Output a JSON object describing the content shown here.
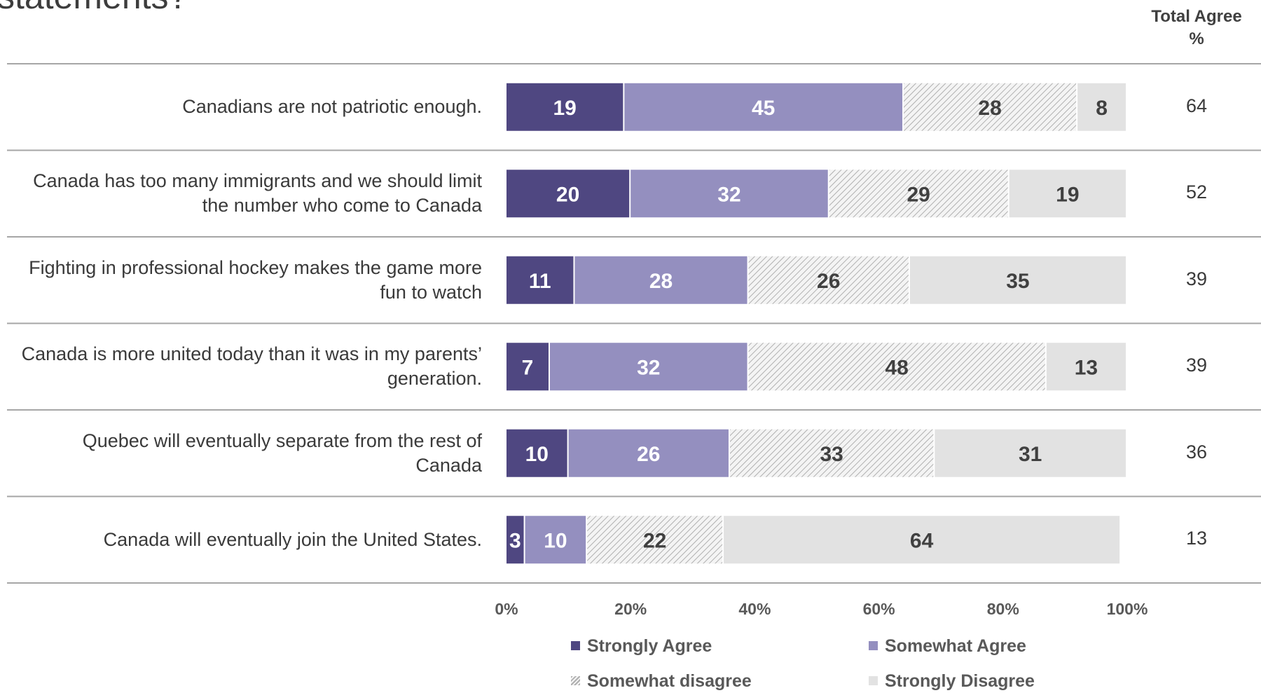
{
  "chart_data": {
    "type": "bar",
    "orientation": "horizontal",
    "stacked": true,
    "title_fragment": "statements?",
    "total_header": "Total Agree\n%",
    "categories": [
      "Canadians are not patriotic enough.",
      "Canada has too many immigrants and we should limit the number who come to Canada",
      "Fighting in professional hockey makes the game more fun to watch",
      "Canada is more united today than it was in my parents’ generation.",
      "Quebec will eventually separate from the rest of Canada",
      "Canada will eventually join the United States."
    ],
    "series": [
      {
        "name": "Strongly Agree",
        "color": "#4f4781",
        "values": [
          19,
          20,
          11,
          7,
          10,
          3
        ]
      },
      {
        "name": "Somewhat Agree",
        "color": "#948fbf",
        "values": [
          45,
          32,
          28,
          32,
          26,
          10
        ]
      },
      {
        "name": "Somewhat disagree",
        "color": "#d4d4d4",
        "pattern": "hatched",
        "values": [
          28,
          29,
          26,
          48,
          33,
          22
        ]
      },
      {
        "name": "Strongly Disagree",
        "color": "#e2e2e2",
        "values": [
          8,
          19,
          35,
          13,
          31,
          64
        ]
      }
    ],
    "total_agree": [
      64,
      52,
      39,
      39,
      36,
      13
    ],
    "x_ticks": [
      "0%",
      "20%",
      "40%",
      "60%",
      "80%",
      "100%"
    ],
    "xlim": [
      0,
      100
    ],
    "legend_position": "bottom"
  }
}
